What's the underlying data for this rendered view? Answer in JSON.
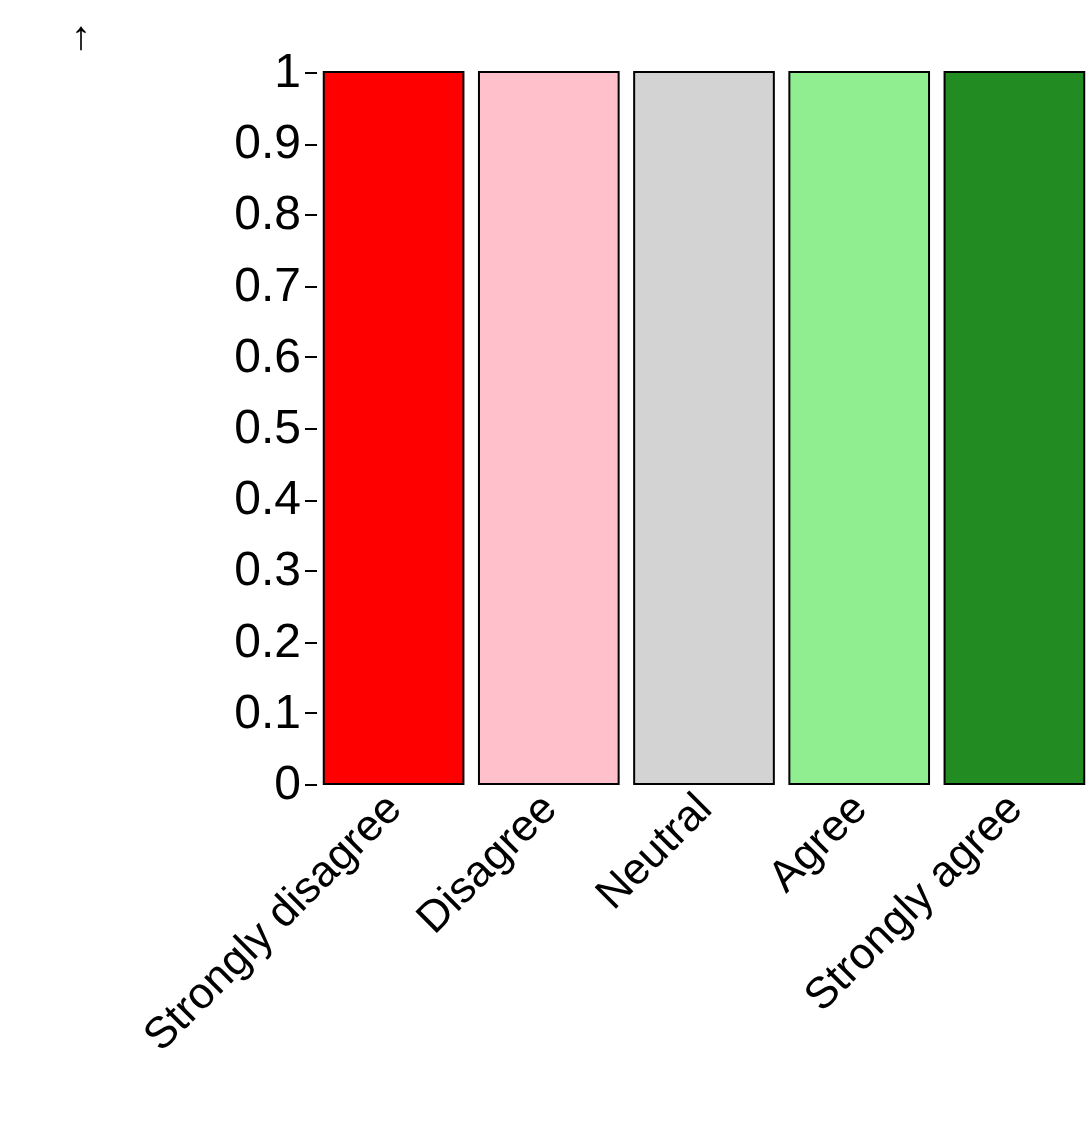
{
  "chart_data": {
    "type": "bar",
    "ylabel": "↑",
    "categories": [
      "Strongly disagree",
      "Disagree",
      "Neutral",
      "Agree",
      "Strongly agree"
    ],
    "values": [
      1,
      1,
      1,
      1,
      1
    ],
    "colors": [
      "#ff0000",
      "#ffc0cb",
      "#d3d3d3",
      "#90ee90",
      "#228b22"
    ],
    "ylim": [
      0,
      1
    ],
    "yticks": [
      0,
      0.1,
      0.2,
      0.3,
      0.4,
      0.5,
      0.6,
      0.7,
      0.8,
      0.9,
      1
    ]
  }
}
